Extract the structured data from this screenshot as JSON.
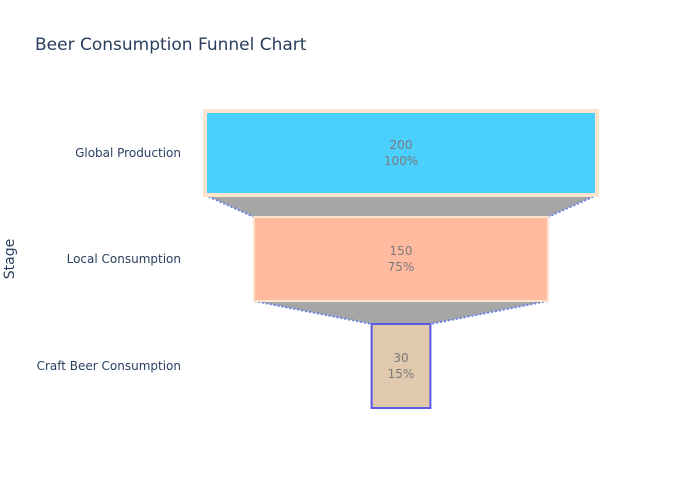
{
  "chart_data": {
    "type": "funnel",
    "title": "Beer Consumption Funnel Chart",
    "ylabel": "Stage",
    "xlabel": "",
    "categories": [
      "Global Production",
      "Local Consumption",
      "Craft Beer Consumption"
    ],
    "values": [
      200,
      150,
      30
    ],
    "percent_labels": [
      "100%",
      "75%",
      "15%"
    ],
    "colors": {
      "fills": [
        "#4bcffd",
        "#ffbaa0",
        "#e0c9ac"
      ],
      "outlines": [
        "#fde4cc",
        "#fde4cc",
        "#5a5ae6"
      ],
      "connector_fill": "#a6a6a6",
      "connector_line": "#6b85e6",
      "title": "#2a3f5f",
      "label_text": "#7a7a7a"
    },
    "legend": "none",
    "grid": false
  }
}
